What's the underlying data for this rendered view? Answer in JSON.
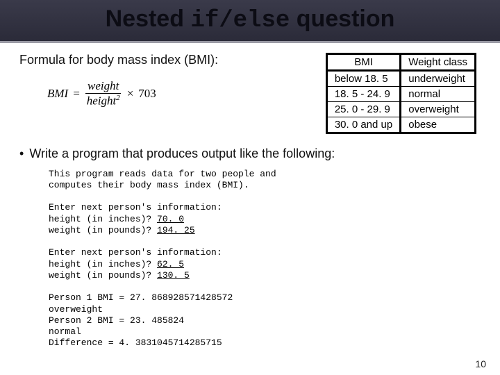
{
  "title": {
    "part1": "Nested ",
    "code": "if/else",
    "part2": " question",
    "color": "#0c0c14",
    "fontsize": 34
  },
  "formula": {
    "label": "Formula for body mass index (BMI):",
    "lhs": "BMI",
    "eq": "=",
    "numerator": "weight",
    "denominator": "height",
    "exponent": "2",
    "times": "×",
    "constant": "703"
  },
  "bmi_table": {
    "headers": [
      "BMI",
      "Weight class"
    ],
    "rows": [
      [
        "below 18. 5",
        "underweight"
      ],
      [
        "18. 5 - 24. 9",
        "normal"
      ],
      [
        "25. 0 - 29. 9",
        "overweight"
      ],
      [
        "30. 0 and up",
        "obese"
      ]
    ],
    "border_color": "#000000",
    "fontsize": 15
  },
  "bullet": "Write a program that produces output like the following:",
  "console": {
    "intro": "This program reads data for two people and\ncomputes their body mass index (BMI).",
    "block1": {
      "l1": "Enter next person's information:",
      "l2_pre": "height (in inches)? ",
      "l2_val": "70. 0",
      "l3_pre": "weight (in pounds)? ",
      "l3_val": "194. 25"
    },
    "block2": {
      "l1": "Enter next person's information:",
      "l2_pre": "height (in inches)? ",
      "l2_val": "62. 5",
      "l3_pre": "weight (in pounds)? ",
      "l3_val": "130. 5"
    },
    "results": "Person 1 BMI = 27. 868928571428572\noverweight\nPerson 2 BMI = 23. 485824\nnormal\nDifference = 4. 3831045714285715"
  },
  "page_number": "10",
  "colors": {
    "title_bg_top": "#3a3a4a",
    "title_bg_bottom": "#2a2a38",
    "title_underline": "#9a9aa5",
    "page_bg": "#ffffff",
    "text": "#111111"
  }
}
